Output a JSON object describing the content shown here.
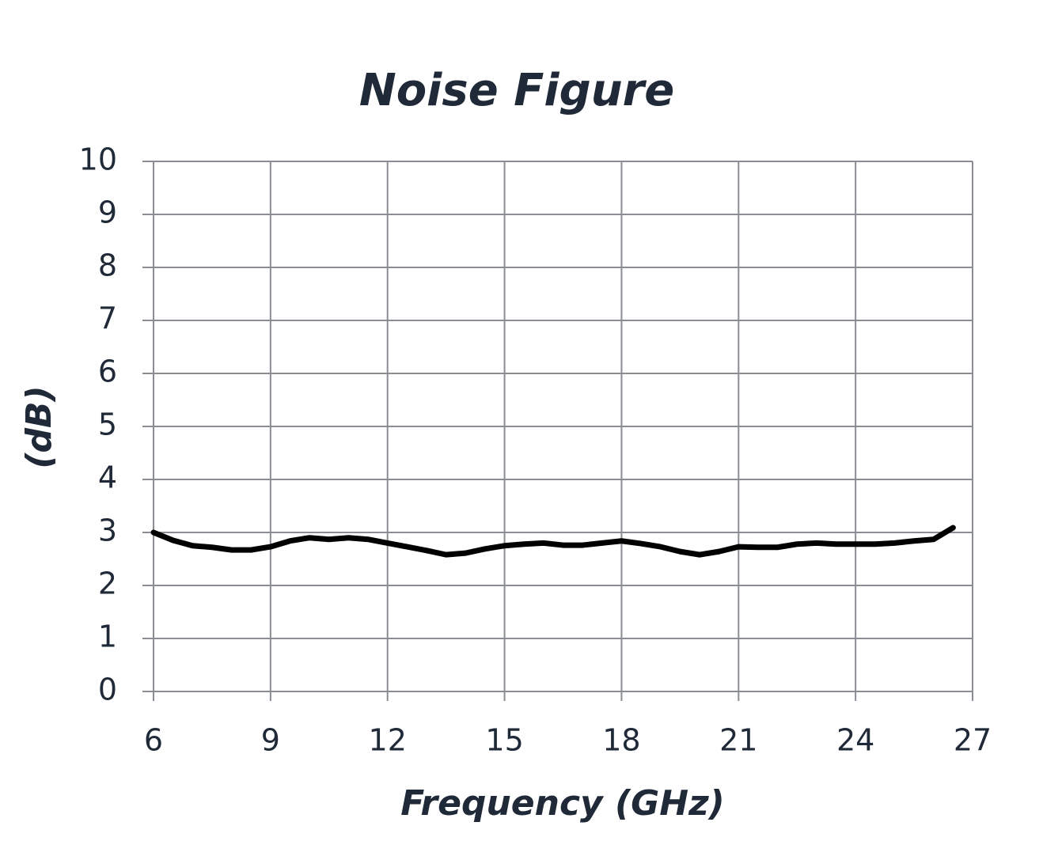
{
  "chart_data": {
    "type": "line",
    "title": "Noise Figure",
    "x_label": "Frequency (GHz)",
    "y_label": "(dB)",
    "x": [
      6,
      6.5,
      7,
      7.5,
      8,
      8.5,
      9,
      9.5,
      10,
      10.5,
      11,
      11.5,
      12,
      12.5,
      13,
      13.5,
      14,
      14.5,
      15,
      15.5,
      16,
      16.5,
      17,
      17.5,
      18,
      18.5,
      19,
      19.5,
      20,
      20.5,
      21,
      21.5,
      22,
      22.5,
      23,
      23.5,
      24,
      24.5,
      25,
      25.5,
      26,
      26.5
    ],
    "series": [
      {
        "name": "Noise Figure",
        "color": "#000000",
        "values": [
          3.0,
          2.85,
          2.75,
          2.72,
          2.67,
          2.67,
          2.73,
          2.84,
          2.9,
          2.87,
          2.9,
          2.87,
          2.8,
          2.73,
          2.66,
          2.58,
          2.61,
          2.69,
          2.75,
          2.78,
          2.8,
          2.76,
          2.76,
          2.8,
          2.84,
          2.79,
          2.73,
          2.64,
          2.58,
          2.64,
          2.73,
          2.72,
          2.72,
          2.78,
          2.8,
          2.78,
          2.78,
          2.78,
          2.8,
          2.84,
          2.87,
          3.09
        ]
      }
    ],
    "xlim": [
      6,
      27
    ],
    "xticks": [
      6,
      9,
      12,
      15,
      18,
      21,
      24,
      27
    ],
    "ylim": [
      0,
      10
    ],
    "yticks": [
      0,
      1,
      2,
      3,
      4,
      5,
      6,
      7,
      8,
      9,
      10
    ],
    "grid": true
  }
}
